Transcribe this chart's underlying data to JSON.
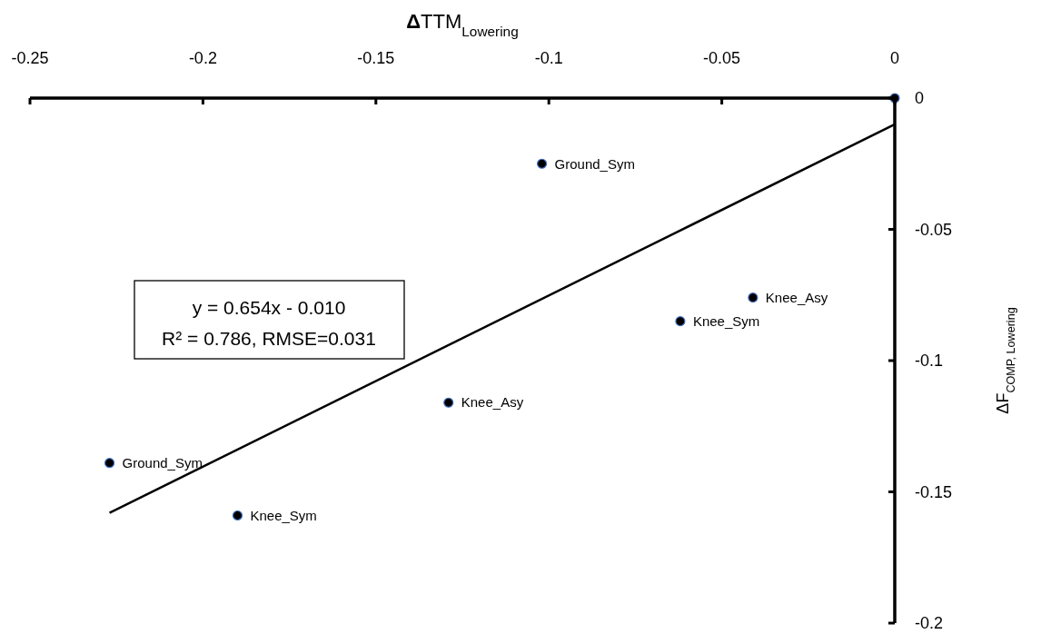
{
  "chart_data": {
    "type": "scatter",
    "xlabel": "ΔTTM$_{Lowering}$",
    "ylabel": "ΔF$_{COMP, Lowering}$",
    "xlim": [
      -0.25,
      0
    ],
    "xticks": [
      -0.25,
      -0.2,
      -0.15,
      -0.1,
      -0.05,
      0
    ],
    "ylim": [
      -0.2,
      0
    ],
    "yticks": [
      -0.2,
      -0.15,
      -0.1,
      -0.05,
      0
    ],
    "marker": "circle",
    "series": [
      {
        "color": "#000000",
        "x": [
          0,
          -0.102,
          -0.041,
          -0.062,
          -0.129,
          -0.227,
          -0.19
        ],
        "values": [
          0,
          -0.025,
          -0.076,
          -0.085,
          -0.116,
          -0.139,
          -0.159
        ]
      },
      {
        "type": "line",
        "marker": "none",
        "color": "#000000",
        "x": [
          -0.227,
          0
        ],
        "values": [
          -0.158,
          -0.01
        ]
      }
    ],
    "annotations": [
      {
        "text": "Ground_Sym",
        "x": -0.102,
        "y": -0.025
      },
      {
        "text": "Knee_Asy",
        "x": -0.041,
        "y": -0.076
      },
      {
        "text": "Knee_Sym",
        "x": -0.062,
        "y": -0.085
      },
      {
        "text": "Knee_Asy",
        "x": -0.129,
        "y": -0.116
      },
      {
        "text": "Ground_Sym",
        "x": -0.227,
        "y": -0.139
      },
      {
        "text": "Knee_Sym",
        "x": -0.19,
        "y": -0.159
      },
      "y = 0.654x - 0.010",
      "R² = 0.786, RMSE=0.031"
    ]
  }
}
